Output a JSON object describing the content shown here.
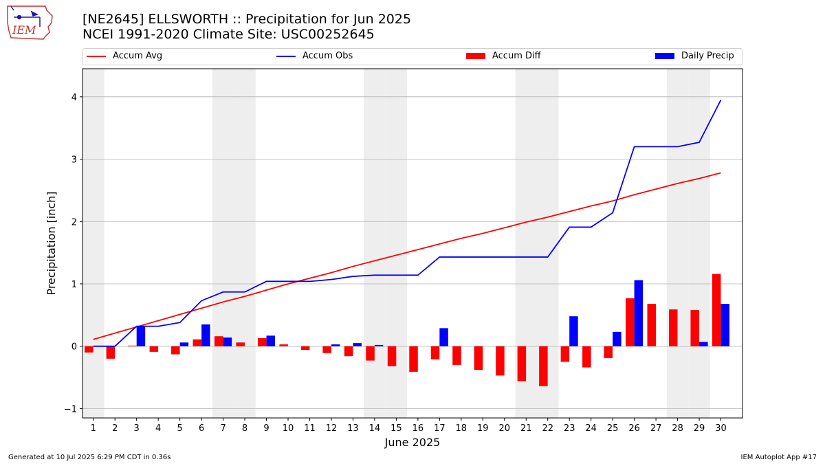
{
  "header": {
    "title": "[NE2645] ELLSWORTH :: Precipitation for Jun 2025",
    "subtitle": "NCEI 1991-2020 Climate Site: USC00252645",
    "logo_text": "IEM"
  },
  "footer": {
    "left": "Generated at 10 Jul 2025 6:29 PM CDT in 0.36s",
    "right": "IEM Autoplot App #17"
  },
  "colors": {
    "avg": "#ff0000",
    "obs": "#0000ff",
    "diff": "#ff0000",
    "daily": "#0000ff",
    "weekend": "#eeeeee",
    "grid": "#b0b0b0"
  },
  "chart_data": {
    "type": "bar",
    "xlabel": "June 2025",
    "ylabel": "Precipitation [inch]",
    "xlim": [
      0.5,
      31
    ],
    "ylim": [
      -1.15,
      4.45
    ],
    "yticks": [
      -1,
      0,
      1,
      2,
      3,
      4
    ],
    "grid": "horizontal",
    "legend_position": "top",
    "weekend_days": [
      1,
      7,
      8,
      14,
      15,
      21,
      22,
      28,
      29
    ],
    "days": [
      1,
      2,
      3,
      4,
      5,
      6,
      7,
      8,
      9,
      10,
      11,
      12,
      13,
      14,
      15,
      16,
      17,
      18,
      19,
      20,
      21,
      22,
      23,
      24,
      25,
      26,
      27,
      28,
      29,
      30
    ],
    "series": [
      {
        "name": "Accum Avg",
        "type": "line",
        "values": [
          0.11,
          0.21,
          0.31,
          0.41,
          0.51,
          0.61,
          0.71,
          0.8,
          0.9,
          1.0,
          1.09,
          1.18,
          1.28,
          1.37,
          1.46,
          1.55,
          1.64,
          1.73,
          1.81,
          1.9,
          1.99,
          2.07,
          2.16,
          2.25,
          2.33,
          2.43,
          2.52,
          2.61,
          2.69,
          2.78
        ]
      },
      {
        "name": "Accum Obs",
        "type": "line",
        "values": [
          0.0,
          0.0,
          0.32,
          0.32,
          0.38,
          0.73,
          0.87,
          0.87,
          1.04,
          1.04,
          1.04,
          1.07,
          1.12,
          1.14,
          1.14,
          1.14,
          1.43,
          1.43,
          1.43,
          1.43,
          1.43,
          1.43,
          1.91,
          1.91,
          2.14,
          3.2,
          3.2,
          3.2,
          3.27,
          3.95
        ]
      },
      {
        "name": "Accum Diff",
        "type": "bar",
        "values": [
          -0.1,
          -0.2,
          0.01,
          -0.09,
          -0.13,
          0.11,
          0.16,
          0.06,
          0.13,
          0.03,
          -0.06,
          -0.11,
          -0.16,
          -0.23,
          -0.32,
          -0.41,
          -0.21,
          -0.3,
          -0.38,
          -0.47,
          -0.56,
          -0.64,
          -0.25,
          -0.34,
          -0.19,
          0.77,
          0.68,
          0.59,
          0.58,
          1.16
        ]
      },
      {
        "name": "Daily Precip",
        "type": "bar",
        "values": [
          0.0,
          0.0,
          0.32,
          0.0,
          0.06,
          0.35,
          0.14,
          0.0,
          0.17,
          0.0,
          0.0,
          0.03,
          0.05,
          0.02,
          0.0,
          0.0,
          0.29,
          0.0,
          0.0,
          0.0,
          0.0,
          0.0,
          0.48,
          0.0,
          0.23,
          1.06,
          0.0,
          0.0,
          0.07,
          0.68
        ]
      }
    ]
  }
}
